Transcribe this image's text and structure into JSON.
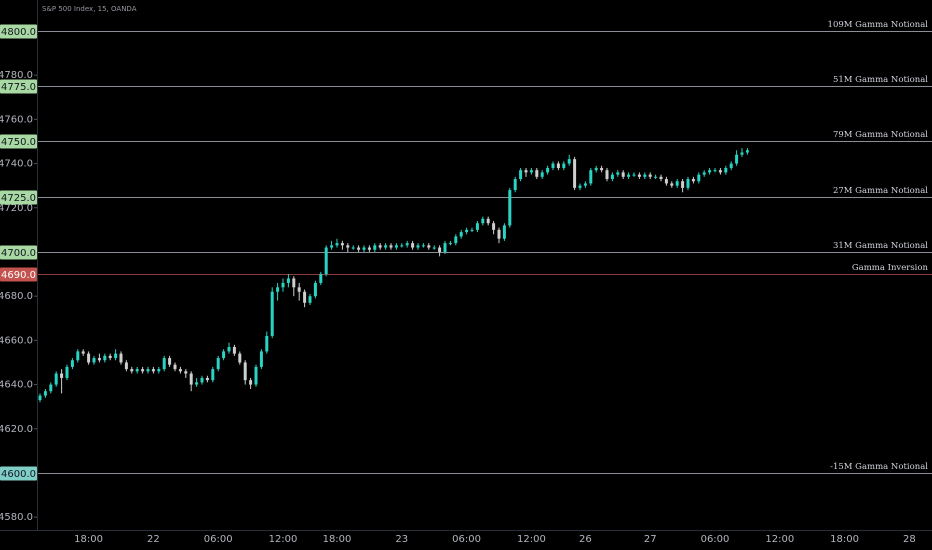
{
  "chart_data": {
    "type": "candlestick",
    "title": "S&P 500 Index, 15, OANDA",
    "up_color": "#2ad4c4",
    "down_color": "#cfcfcf",
    "ylim": [
      4574.2,
      4814
    ],
    "yticks": [
      {
        "value": 4580,
        "label": "4580.0"
      },
      {
        "value": 4620,
        "label": "4620.0"
      },
      {
        "value": 4640,
        "label": "4640.0"
      },
      {
        "value": 4660,
        "label": "4660.0"
      },
      {
        "value": 4680,
        "label": "4680.0"
      },
      {
        "value": 4720,
        "label": "4720.0"
      },
      {
        "value": 4740,
        "label": "4740.0"
      },
      {
        "value": 4760,
        "label": "4760.0"
      },
      {
        "value": 4780,
        "label": "4780.0"
      }
    ],
    "levels": [
      {
        "value": 4800,
        "label": "4800.0",
        "text": "109M Gamma Notional",
        "color": "#a9d9a3",
        "line_color": "#8a8d96"
      },
      {
        "value": 4775,
        "label": "4775.0",
        "text": "51M Gamma Notional",
        "color": "#a9d9a3",
        "line_color": "#8a8d96"
      },
      {
        "value": 4750,
        "label": "4750.0",
        "text": "79M Gamma Notional",
        "color": "#a9d9a3",
        "line_color": "#8a8d96"
      },
      {
        "value": 4725,
        "label": "4725.0",
        "text": "27M Gamma Notional",
        "color": "#a9d9a3",
        "line_color": "#8a8d96"
      },
      {
        "value": 4700,
        "label": "4700.0",
        "text": "31M Gamma Notional",
        "color": "#a9d9a3",
        "line_color": "#8a8d96"
      },
      {
        "value": 4690,
        "label": "4690.0",
        "text": "Gamma Inversion",
        "color": "#c4524e",
        "line_color": "#8c3b39"
      },
      {
        "value": 4600,
        "label": "4600.0",
        "text": "-15M Gamma Notional",
        "color": "#7fcfc6",
        "line_color": "#8a8d96"
      }
    ],
    "categories": [
      null,
      null,
      null,
      null,
      null,
      null,
      null,
      null,
      null,
      "18:00",
      null,
      null,
      null,
      null,
      null,
      null,
      null,
      null,
      null,
      null,
      null,
      "22",
      null,
      null,
      null,
      null,
      null,
      null,
      null,
      null,
      null,
      null,
      null,
      "06:00",
      null,
      null,
      null,
      null,
      null,
      null,
      null,
      null,
      null,
      null,
      null,
      "12:00",
      null,
      null,
      null,
      null,
      null,
      null,
      null,
      null,
      null,
      "18:00",
      null,
      null,
      null,
      null,
      null,
      null,
      null,
      null,
      null,
      null,
      null,
      "23",
      null,
      null,
      null,
      null,
      null,
      null,
      null,
      null,
      null,
      null,
      null,
      "06:00",
      null,
      null,
      null,
      null,
      null,
      null,
      null,
      null,
      null,
      null,
      null,
      "12:00",
      null,
      null,
      null,
      null,
      null,
      null,
      null,
      null,
      null,
      "26",
      null,
      null,
      null,
      null,
      null,
      null,
      null,
      null,
      null,
      null,
      null,
      "27",
      null,
      null,
      null,
      null,
      null,
      null,
      null,
      null,
      null,
      null,
      null,
      "06:00",
      null,
      null,
      null,
      null,
      null,
      null,
      null,
      null,
      null,
      null,
      null,
      "12:00",
      null,
      null,
      null,
      null,
      null,
      null,
      null,
      null,
      null,
      null,
      null,
      "18:00",
      null,
      null,
      null,
      null,
      null,
      null,
      null,
      null,
      null,
      null,
      null,
      "28"
    ],
    "open": [
      4633,
      4635,
      4637,
      4640,
      4645,
      4643,
      4648,
      4651,
      4655,
      4654,
      4650,
      4652,
      4651,
      4653,
      4652,
      4654,
      4650,
      4647,
      4646,
      4647,
      4646,
      4647,
      4646,
      4647,
      4652,
      4649,
      4647,
      4646,
      4645,
      4640,
      4641,
      4643,
      4642,
      4647,
      4652,
      4655,
      4657,
      4654,
      4650,
      4642,
      4640,
      4648,
      4655,
      4662,
      4682,
      4684,
      4686,
      4688,
      4684,
      4682,
      4677,
      4680,
      4686,
      4690,
      4702,
      4703,
      4704,
      4703,
      4702,
      4702,
      4701,
      4702,
      4701,
      4703,
      4702,
      4703,
      4702,
      4703,
      4703,
      4704,
      4702,
      4703,
      4703,
      4702,
      4702,
      4700,
      4704,
      4704,
      4707,
      4709,
      4710,
      4710,
      4713,
      4715,
      4713,
      4710,
      4706,
      4712,
      4728,
      4733,
      4737,
      4736,
      4737,
      4734,
      4736,
      4738,
      4740,
      4738,
      4740,
      4742,
      4729,
      4730,
      4731,
      4737,
      4738,
      4737,
      4733,
      4735,
      4736,
      4734,
      4735,
      4735,
      4734,
      4735,
      4734,
      4734,
      4733,
      4731,
      4730,
      4732,
      4729,
      4733,
      4732,
      4735,
      4736,
      4737,
      4737,
      4736,
      4738,
      4740,
      4744,
      4745,
      null,
      null,
      null,
      null,
      null,
      null,
      null,
      null,
      null,
      null,
      null,
      null,
      null,
      null,
      null,
      null,
      null,
      null,
      null,
      null,
      null,
      null,
      null,
      null,
      null,
      null,
      null,
      null,
      null,
      null
    ],
    "high": [
      4636,
      4638,
      4641,
      4646,
      4647,
      4649,
      4652,
      4656,
      4656,
      4655,
      4653,
      4654,
      4654,
      4654,
      4656,
      4655,
      4651,
      4648,
      4648,
      4648,
      4648,
      4648,
      4648,
      4653,
      4653,
      4650,
      4648,
      4647,
      4646,
      4643,
      4644,
      4644,
      4648,
      4653,
      4656,
      4659,
      4658,
      4655,
      4651,
      4643,
      4649,
      4656,
      4664,
      4684,
      4686,
      4688,
      4690,
      4689,
      4686,
      4683,
      4681,
      4687,
      4691,
      4703,
      4705,
      4706,
      4705,
      4704,
      4703,
      4703,
      4703,
      4703,
      4704,
      4704,
      4704,
      4704,
      4704,
      4704,
      4705,
      4705,
      4704,
      4704,
      4704,
      4703,
      4703,
      4705,
      4705,
      4708,
      4710,
      4711,
      4711,
      4714,
      4716,
      4716,
      4714,
      4711,
      4713,
      4729,
      4734,
      4738,
      4738,
      4738,
      4738,
      4737,
      4739,
      4741,
      4741,
      4741,
      4744,
      4743,
      4731,
      4732,
      4738,
      4739,
      4739,
      4738,
      4736,
      4737,
      4737,
      4736,
      4736,
      4736,
      4736,
      4736,
      4735,
      4735,
      4734,
      4732,
      4733,
      4733,
      4734,
      4734,
      4736,
      4737,
      4738,
      4738,
      4738,
      4739,
      4741,
      4746,
      4747,
      4747,
      null,
      null,
      null,
      null,
      null,
      null,
      null,
      null,
      null,
      null,
      null,
      null,
      null,
      null,
      null,
      null,
      null,
      null,
      null,
      null,
      null,
      null,
      null,
      null,
      null,
      null,
      null,
      null,
      null,
      null
    ],
    "low": [
      4632,
      4634,
      4636,
      4639,
      4636,
      4642,
      4647,
      4650,
      4653,
      4649,
      4649,
      4650,
      4650,
      4651,
      4651,
      4649,
      4646,
      4645,
      4645,
      4645,
      4645,
      4645,
      4645,
      4646,
      4648,
      4646,
      4645,
      4643,
      4637,
      4639,
      4640,
      4641,
      4641,
      4646,
      4651,
      4654,
      4653,
      4649,
      4640,
      4638,
      4639,
      4647,
      4654,
      4661,
      4678,
      4682,
      4684,
      4680,
      4678,
      4675,
      4676,
      4679,
      4685,
      4689,
      4701,
      4702,
      4701,
      4700,
      4701,
      4700,
      4700,
      4700,
      4700,
      4701,
      4701,
      4701,
      4701,
      4702,
      4702,
      4701,
      4701,
      4702,
      4701,
      4701,
      4698,
      4699,
      4703,
      4703,
      4706,
      4708,
      4709,
      4709,
      4712,
      4712,
      4708,
      4704,
      4705,
      4711,
      4727,
      4732,
      4734,
      4735,
      4733,
      4733,
      4735,
      4737,
      4737,
      4737,
      4739,
      4728,
      4728,
      4729,
      4730,
      4736,
      4736,
      4732,
      4732,
      4734,
      4733,
      4733,
      4734,
      4733,
      4733,
      4733,
      4733,
      4732,
      4730,
      4729,
      4729,
      4727,
      4728,
      4731,
      4731,
      4734,
      4735,
      4736,
      4735,
      4735,
      4737,
      4739,
      4743,
      4744,
      null,
      null,
      null,
      null,
      null,
      null,
      null,
      null,
      null,
      null,
      null,
      null,
      null,
      null,
      null,
      null,
      null,
      null,
      null,
      null,
      null,
      null,
      null,
      null,
      null,
      null,
      null,
      null,
      null,
      null
    ],
    "close": [
      4635,
      4637,
      4640,
      4645,
      4643,
      4648,
      4651,
      4655,
      4654,
      4650,
      4652,
      4651,
      4653,
      4652,
      4654,
      4650,
      4647,
      4646,
      4647,
      4646,
      4647,
      4646,
      4647,
      4652,
      4649,
      4647,
      4646,
      4645,
      4640,
      4641,
      4643,
      4642,
      4647,
      4652,
      4655,
      4657,
      4654,
      4650,
      4642,
      4640,
      4648,
      4655,
      4662,
      4682,
      4684,
      4686,
      4688,
      4684,
      4682,
      4677,
      4680,
      4686,
      4690,
      4702,
      4703,
      4704,
      4703,
      4702,
      4702,
      4701,
      4702,
      4701,
      4703,
      4702,
      4703,
      4702,
      4703,
      4703,
      4704,
      4702,
      4703,
      4703,
      4702,
      4702,
      4700,
      4704,
      4704,
      4707,
      4709,
      4710,
      4710,
      4713,
      4715,
      4713,
      4710,
      4706,
      4712,
      4728,
      4733,
      4737,
      4736,
      4737,
      4734,
      4736,
      4738,
      4740,
      4738,
      4740,
      4742,
      4729,
      4730,
      4731,
      4737,
      4738,
      4737,
      4733,
      4735,
      4736,
      4734,
      4735,
      4735,
      4734,
      4735,
      4734,
      4734,
      4733,
      4731,
      4730,
      4732,
      4729,
      4733,
      4732,
      4735,
      4736,
      4737,
      4737,
      4736,
      4738,
      4740,
      4744,
      4745,
      4746,
      null,
      null,
      null,
      null,
      null,
      null,
      null,
      null,
      null,
      null,
      null,
      null,
      null,
      null,
      null,
      null,
      null,
      null,
      null,
      null,
      null,
      null,
      null,
      null,
      null,
      null,
      null,
      null,
      null,
      null
    ]
  }
}
